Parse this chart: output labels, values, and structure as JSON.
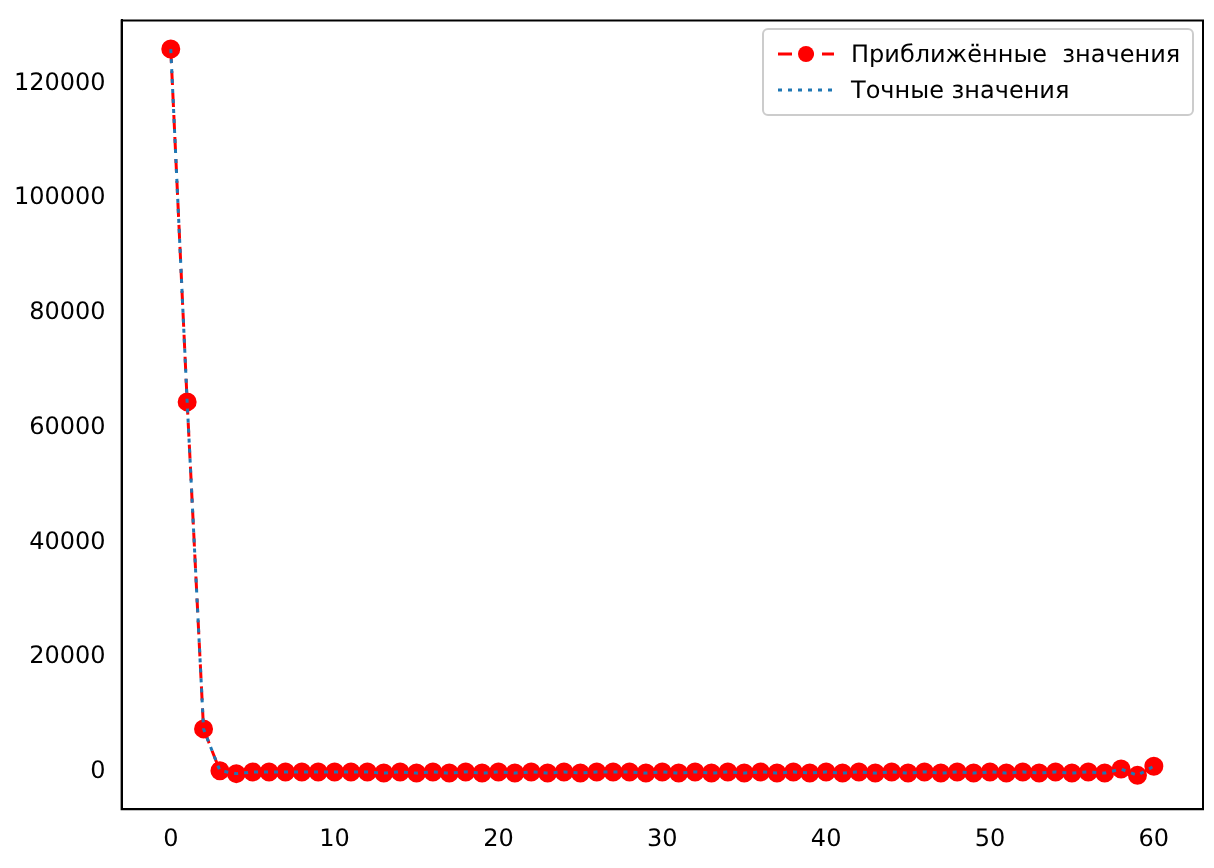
{
  "chart_data": {
    "type": "line",
    "x": [
      0,
      1,
      2,
      3,
      4,
      5,
      6,
      7,
      8,
      9,
      10,
      11,
      12,
      13,
      14,
      15,
      16,
      17,
      18,
      19,
      20,
      21,
      22,
      23,
      24,
      25,
      26,
      27,
      28,
      29,
      30,
      31,
      32,
      33,
      34,
      35,
      36,
      37,
      38,
      39,
      40,
      41,
      42,
      43,
      44,
      45,
      46,
      47,
      48,
      49,
      50,
      51,
      52,
      53,
      54,
      55,
      56,
      57,
      58,
      59,
      60
    ],
    "series": [
      {
        "name": "Приближённые  значения",
        "color": "#ff0000",
        "line_style": "dashed",
        "marker": "circle",
        "values": [
          126000,
          64500,
          7500,
          200,
          -300,
          0,
          0,
          0,
          0,
          0,
          0,
          0,
          0,
          -200,
          0,
          -200,
          0,
          -200,
          0,
          -200,
          0,
          -200,
          0,
          -200,
          0,
          -200,
          0,
          0,
          0,
          -200,
          0,
          -200,
          0,
          -200,
          0,
          -200,
          0,
          -200,
          0,
          -200,
          0,
          -200,
          0,
          -200,
          0,
          -200,
          0,
          -200,
          0,
          -200,
          0,
          -200,
          0,
          -200,
          0,
          -200,
          0,
          -200,
          500,
          -600,
          1000
        ]
      },
      {
        "name": "Точные значения",
        "color": "#1f77b4",
        "line_style": "dotted",
        "marker": "none",
        "values": [
          126000,
          64500,
          7500,
          200,
          -300,
          0,
          0,
          0,
          0,
          0,
          0,
          0,
          0,
          -200,
          0,
          -200,
          0,
          -200,
          0,
          -200,
          0,
          -200,
          0,
          -200,
          0,
          -200,
          0,
          0,
          0,
          -200,
          0,
          -200,
          0,
          -200,
          0,
          -200,
          0,
          -200,
          0,
          -200,
          0,
          -200,
          0,
          -200,
          0,
          -200,
          0,
          -200,
          0,
          -200,
          0,
          -200,
          0,
          -200,
          0,
          -200,
          0,
          -200,
          500,
          -600,
          1000
        ]
      }
    ],
    "xlim": [
      -3,
      63
    ],
    "xticks": [
      0,
      10,
      20,
      30,
      40,
      50,
      60
    ],
    "ylim": [
      -6500,
      131000
    ],
    "yticks": [
      0,
      20000,
      40000,
      60000,
      80000,
      100000,
      120000
    ],
    "grid": false,
    "legend": "top right"
  }
}
